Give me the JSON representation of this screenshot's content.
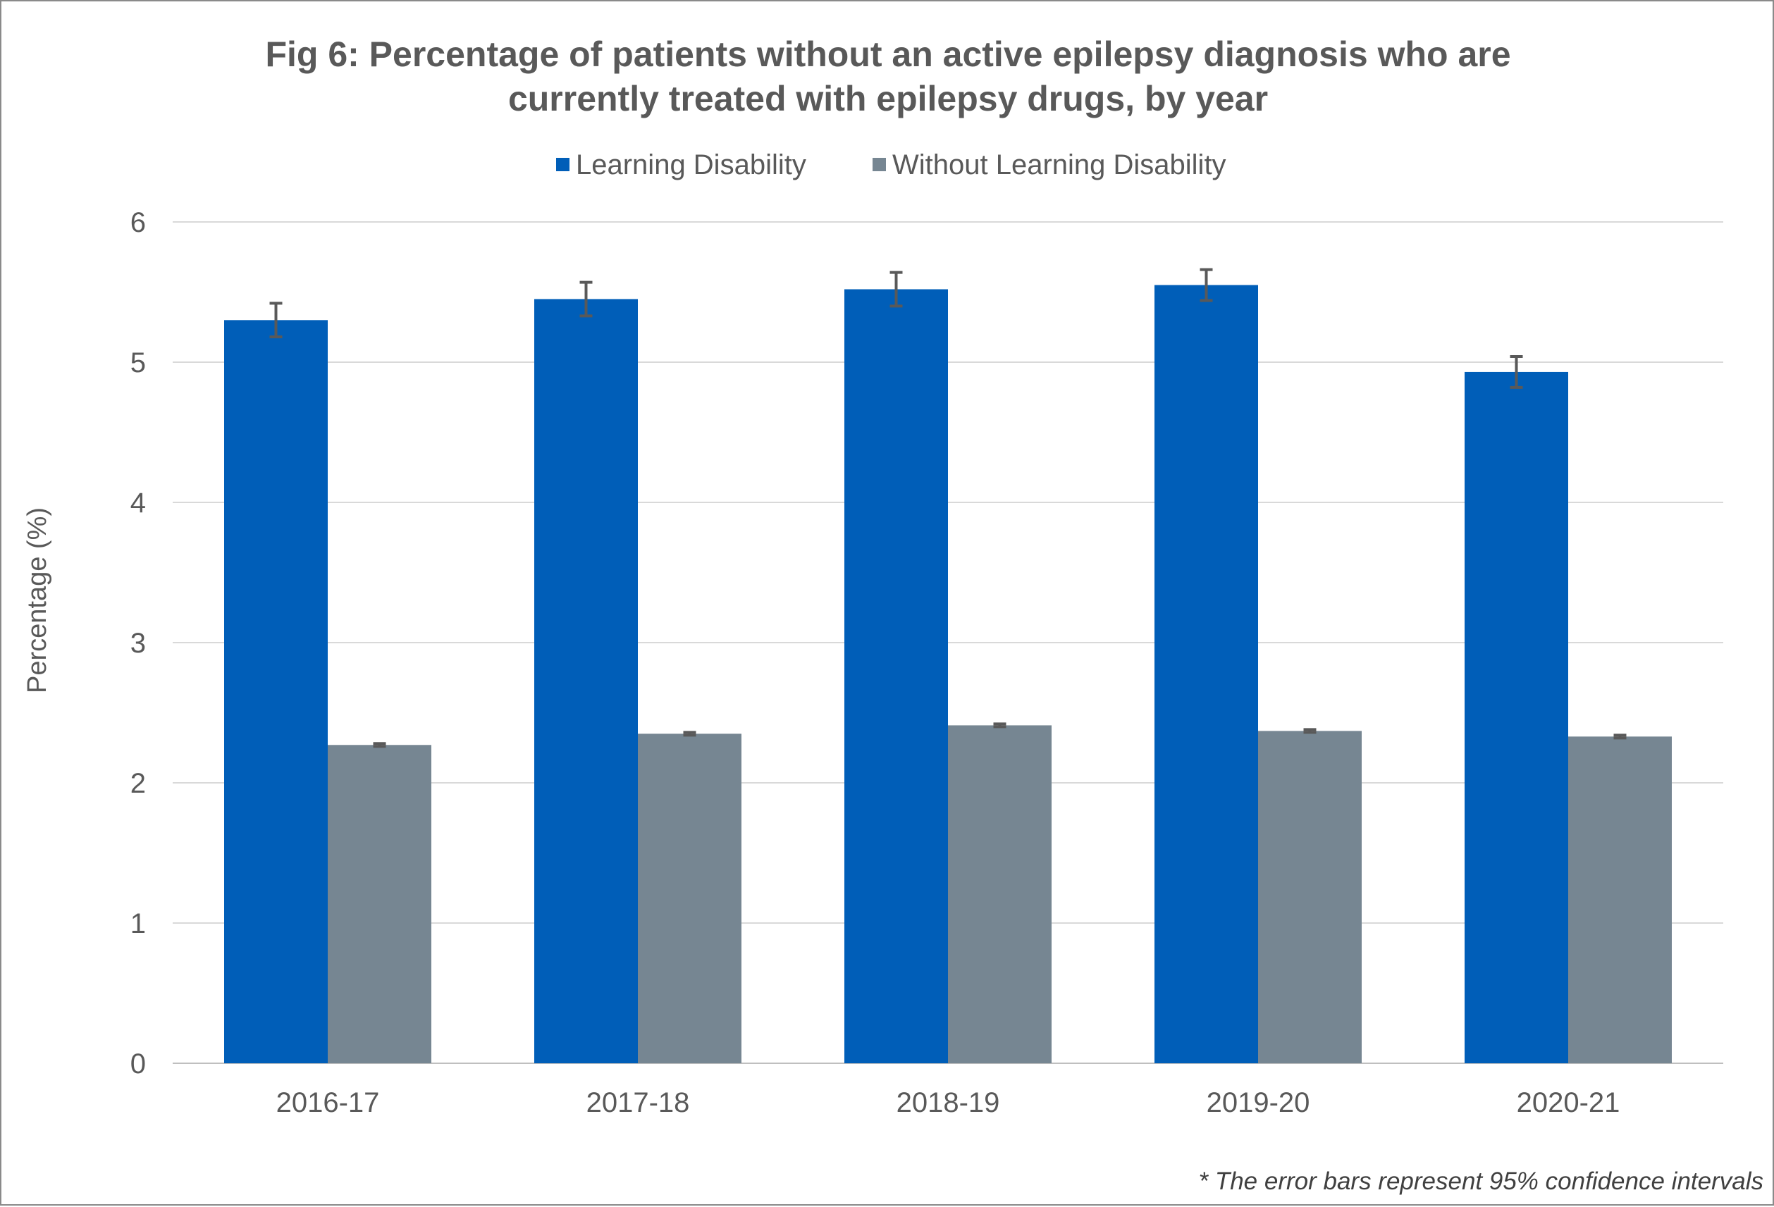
{
  "chart_data": {
    "type": "bar",
    "title_lines": [
      "Fig 6: Percentage of patients without an active epilepsy diagnosis who are",
      "currently treated with epilepsy drugs, by year"
    ],
    "ylabel": "Percentage (%)",
    "xlabel": "",
    "ylim": [
      0,
      6
    ],
    "yticks": [
      "0",
      "1",
      "2",
      "3",
      "4",
      "5",
      "6"
    ],
    "grid": true,
    "legend_position": "top",
    "categories": [
      "2016-17",
      "2017-18",
      "2018-19",
      "2019-20",
      "2020-21"
    ],
    "series": [
      {
        "name": "Learning Disability",
        "color": "#005EB8",
        "values": [
          5.3,
          5.45,
          5.52,
          5.55,
          4.93
        ],
        "error": [
          0.12,
          0.12,
          0.12,
          0.11,
          0.11
        ]
      },
      {
        "name": "Without Learning Disability",
        "color": "#768692",
        "values": [
          2.27,
          2.35,
          2.41,
          2.37,
          2.33
        ],
        "error": [
          0.01,
          0.01,
          0.01,
          0.01,
          0.01
        ]
      }
    ],
    "error_bar_color": "#595959",
    "footnote": "* The error bars represent 95% confidence intervals"
  }
}
